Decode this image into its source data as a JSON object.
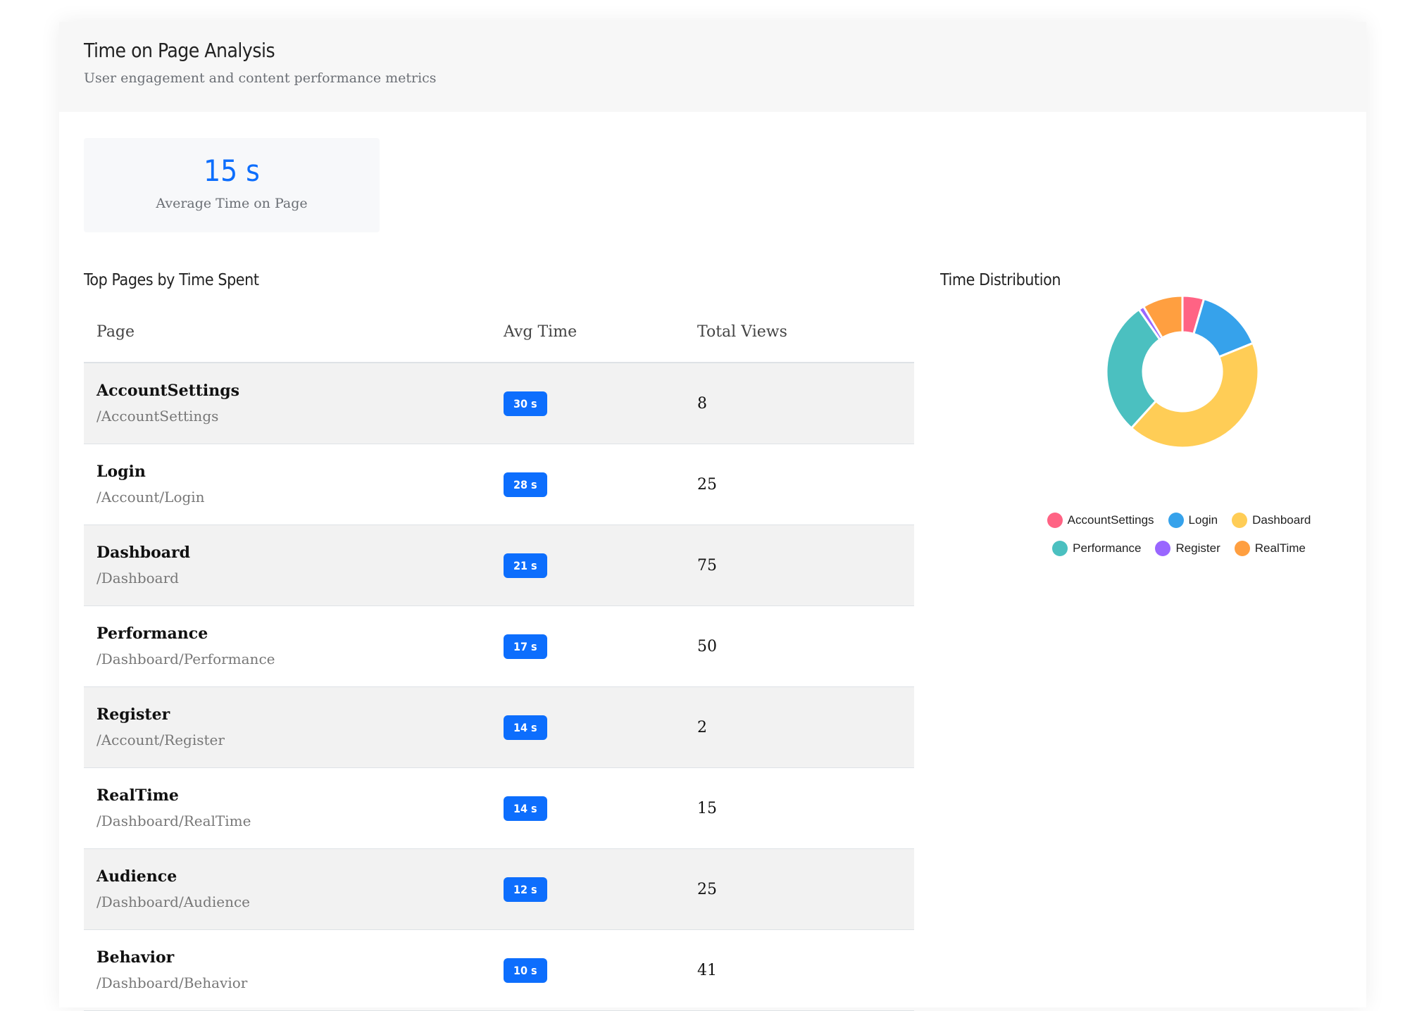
{
  "header": {
    "title": "Time on Page Analysis",
    "subtitle": "User engagement and content performance metrics"
  },
  "metric": {
    "value": "15 s",
    "label": "Average Time on Page"
  },
  "table": {
    "title": "Top Pages by Time Spent",
    "columns": [
      "Page",
      "Avg Time",
      "Total Views"
    ],
    "rows": [
      {
        "name": "AccountSettings",
        "path": "/AccountSettings",
        "avg": "30 s",
        "views": "8"
      },
      {
        "name": "Login",
        "path": "/Account/Login",
        "avg": "28 s",
        "views": "25"
      },
      {
        "name": "Dashboard",
        "path": "/Dashboard",
        "avg": "21 s",
        "views": "75"
      },
      {
        "name": "Performance",
        "path": "/Dashboard/Performance",
        "avg": "17 s",
        "views": "50"
      },
      {
        "name": "Register",
        "path": "/Account/Register",
        "avg": "14 s",
        "views": "2"
      },
      {
        "name": "RealTime",
        "path": "/Dashboard/RealTime",
        "avg": "14 s",
        "views": "15"
      },
      {
        "name": "Audience",
        "path": "/Dashboard/Audience",
        "avg": "12 s",
        "views": "25"
      },
      {
        "name": "Behavior",
        "path": "/Dashboard/Behavior",
        "avg": "10 s",
        "views": "41"
      }
    ]
  },
  "chart_data": {
    "type": "pie",
    "title": "Time Distribution",
    "categories": [
      "AccountSettings",
      "Login",
      "Dashboard",
      "Performance",
      "Register",
      "RealTime"
    ],
    "values": [
      8,
      25,
      75,
      50,
      2,
      15
    ],
    "colors": [
      "#ff6384",
      "#36a2eb",
      "#ffcd56",
      "#4bc0c0",
      "#9966ff",
      "#ff9f40"
    ],
    "legend": "bottom"
  }
}
